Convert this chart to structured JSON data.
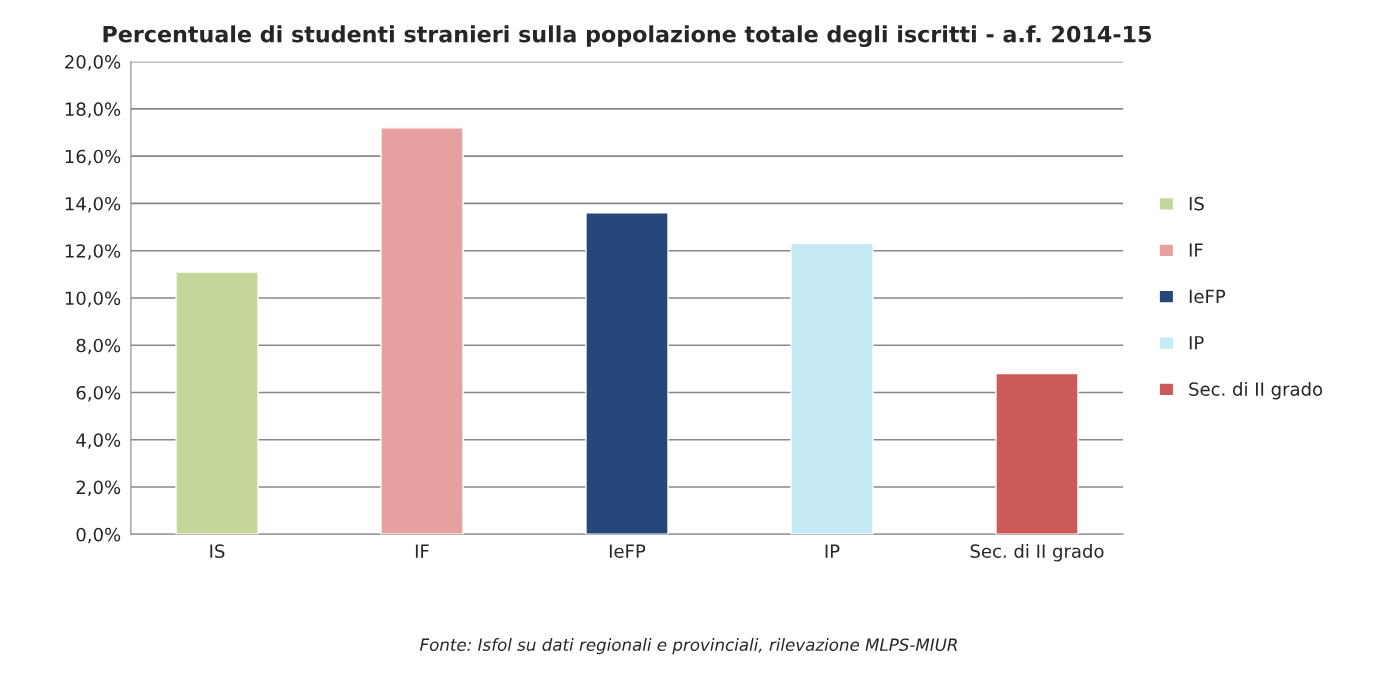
{
  "chart_data": {
    "type": "bar",
    "title": "Percentuale di studenti stranieri sulla popolazione totale degli iscritti - a.f. 2014-15",
    "categories": [
      "IS",
      "IF",
      "IeFP",
      "IP",
      "Sec. di II grado"
    ],
    "series": [
      {
        "name": "IS",
        "color": "#c4d79b",
        "values": [
          11.1,
          null,
          null,
          null,
          null
        ]
      },
      {
        "name": "IF",
        "color": "#e6a0a0",
        "values": [
          null,
          17.2,
          null,
          null,
          null
        ]
      },
      {
        "name": "IeFP",
        "color": "#26477a",
        "values": [
          null,
          null,
          13.6,
          null,
          null
        ]
      },
      {
        "name": "IP",
        "color": "#c5e9f5",
        "values": [
          null,
          null,
          null,
          12.3,
          null
        ]
      },
      {
        "name": "Sec. di II grado",
        "color": "#cc5a57",
        "values": [
          null,
          null,
          null,
          null,
          6.8
        ]
      }
    ],
    "ylim": [
      0,
      20
    ],
    "yticks": [
      {
        "value": 0,
        "label": "0,0%"
      },
      {
        "value": 2,
        "label": "2,0%"
      },
      {
        "value": 4,
        "label": "4,0%"
      },
      {
        "value": 6,
        "label": "6,0%"
      },
      {
        "value": 8,
        "label": "8,0%"
      },
      {
        "value": 10,
        "label": "10,0%"
      },
      {
        "value": 12,
        "label": "12,0%"
      },
      {
        "value": 14,
        "label": "14,0%"
      },
      {
        "value": 16,
        "label": "16,0%"
      },
      {
        "value": 18,
        "label": "18,0%"
      },
      {
        "value": 20,
        "label": "20,0%"
      }
    ],
    "grid": "y",
    "legend": "right",
    "annotations": [
      "Fonte: Isfol su dati regionali e provinciali, rilevazione MLPS-MIUR"
    ]
  }
}
